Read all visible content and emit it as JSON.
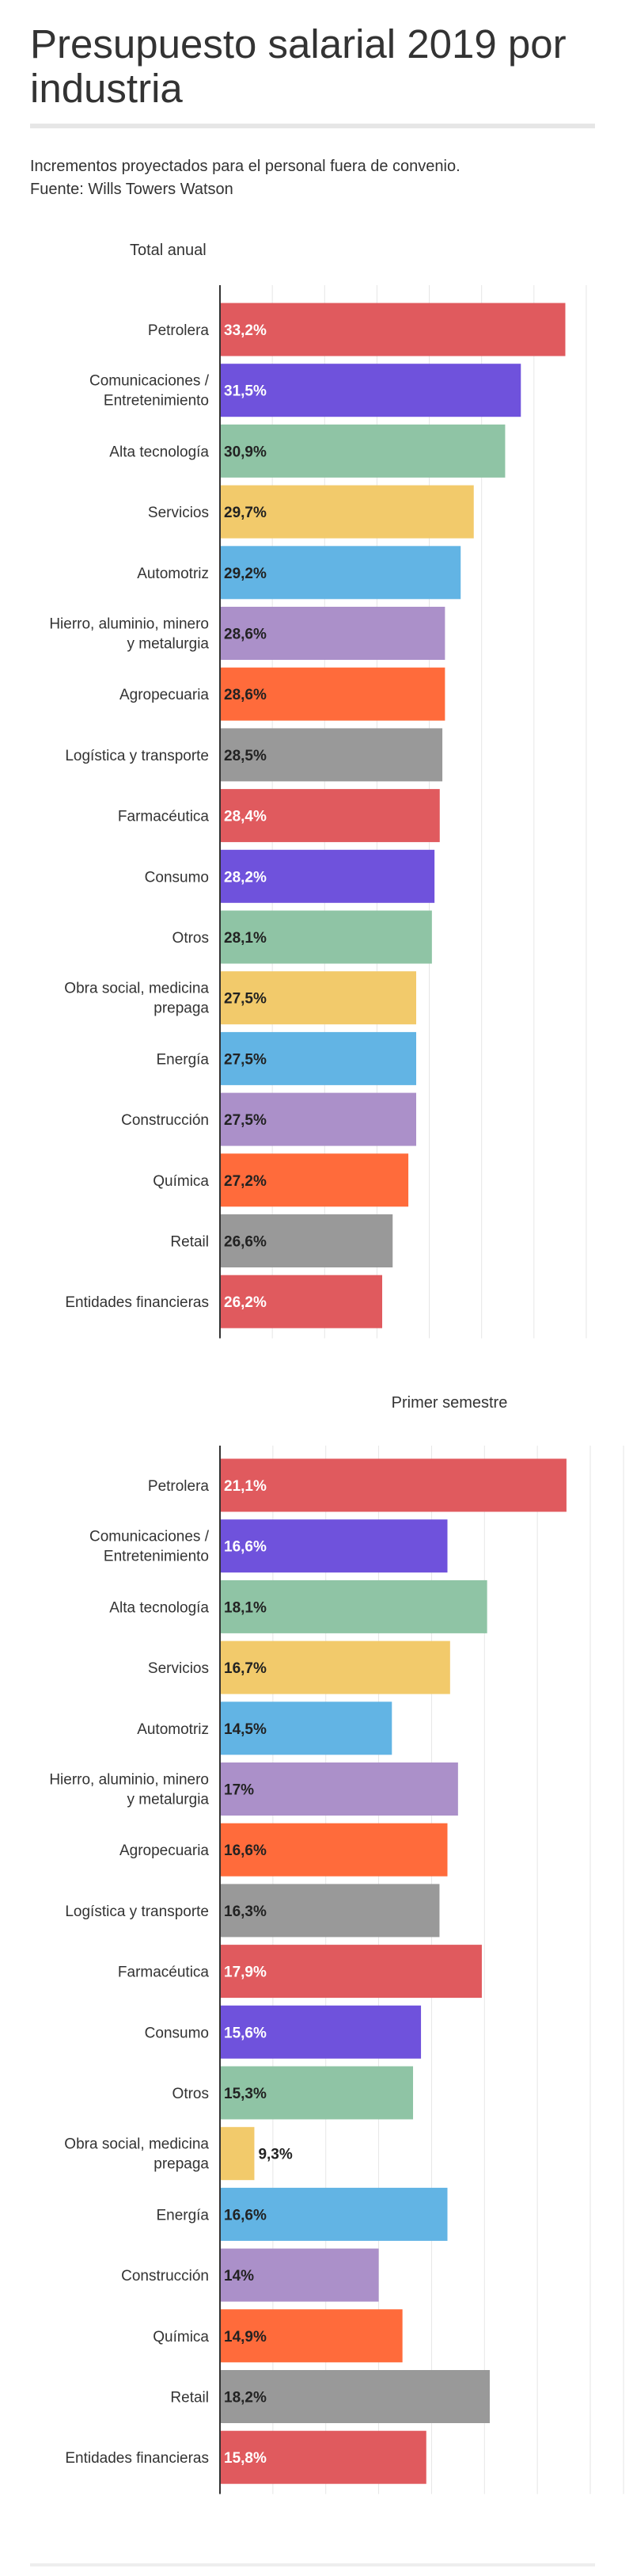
{
  "title": "Presupuesto salarial 2019 por industria",
  "subtitle_line1": "Incrementos proyectados para el personal fuera de convenio.",
  "subtitle_line2": "Fuente: Wills Towers Watson",
  "chart_data": [
    {
      "type": "bar",
      "orientation": "horizontal",
      "title": "Total anual",
      "categories": [
        "Petrolera",
        "Comunicaciones / Entretenimiento",
        "Alta tecnología",
        "Servicios",
        "Automotriz",
        "Hierro, aluminio, minero y metalurgia",
        "Agropecuaria",
        "Logística y transporte",
        "Farmacéutica",
        "Consumo",
        "Otros",
        "Obra social, medicina prepaga",
        "Energía",
        "Construcción",
        "Química",
        "Retail",
        "Entidades financieras"
      ],
      "values": [
        33.2,
        31.5,
        30.9,
        29.7,
        29.2,
        28.6,
        28.6,
        28.5,
        28.4,
        28.2,
        28.1,
        27.5,
        27.5,
        27.5,
        27.2,
        26.6,
        26.2
      ],
      "value_labels": [
        "33,2%",
        "31,5%",
        "30,9%",
        "29,7%",
        "29,2%",
        "28,6%",
        "28,6%",
        "28,5%",
        "28,4%",
        "28,2%",
        "28,1%",
        "27,5%",
        "27,5%",
        "27,5%",
        "27,2%",
        "26,6%",
        "26,2%"
      ],
      "xlim": [
        20,
        35
      ],
      "grid": true,
      "legend": "none"
    },
    {
      "type": "bar",
      "orientation": "horizontal",
      "title": "Primer semestre",
      "categories": [
        "Petrolera",
        "Comunicaciones / Entretenimiento",
        "Alta tecnología",
        "Servicios",
        "Automotriz",
        "Hierro, aluminio, minero y metalurgia",
        "Agropecuaria",
        "Logística y transporte",
        "Farmacéutica",
        "Consumo",
        "Otros",
        "Obra social, medicina prepaga",
        "Energía",
        "Construcción",
        "Química",
        "Retail",
        "Entidades financieras"
      ],
      "values": [
        21.1,
        16.6,
        18.1,
        16.7,
        14.5,
        17,
        16.6,
        16.3,
        17.9,
        15.6,
        15.3,
        9.3,
        16.6,
        14,
        14.9,
        18.2,
        15.8
      ],
      "value_labels": [
        "21,1%",
        "16,6%",
        "18,1%",
        "16,7%",
        "14,5%",
        "17%",
        "16,6%",
        "16,3%",
        "17,9%",
        "15,6%",
        "15,3%",
        "9,3%",
        "16,6%",
        "14%",
        "14,9%",
        "18,2%",
        "15,8%"
      ],
      "xlim": [
        8,
        22
      ],
      "grid": true,
      "legend": "none"
    }
  ],
  "colors": [
    "#e05a5e",
    "#6f52dc",
    "#8fc4a5",
    "#f2ca6b",
    "#62b4e4",
    "#ab90c9",
    "#ff6b3b",
    "#999999"
  ],
  "dark_text_colors": [
    "#8fc4a5",
    "#f2ca6b",
    "#62b4e4",
    "#ab90c9",
    "#ff6b3b",
    "#999999"
  ]
}
